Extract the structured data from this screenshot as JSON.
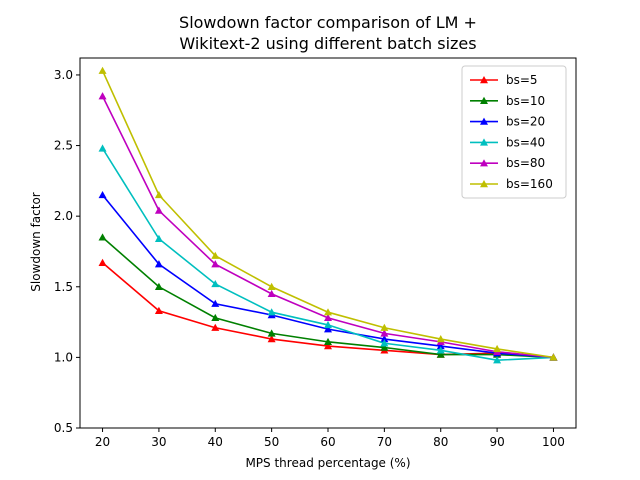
{
  "chart_data": {
    "type": "line",
    "title": [
      "Slowdown factor comparison of LM +",
      "Wikitext-2 using different batch sizes"
    ],
    "xlabel": "MPS thread percentage (%)",
    "ylabel": "Slowdown factor",
    "xlim": [
      16,
      104
    ],
    "ylim": [
      0.5,
      3.12
    ],
    "x": [
      20,
      30,
      40,
      50,
      60,
      70,
      80,
      90,
      100
    ],
    "xticks": [
      "20",
      "30",
      "40",
      "50",
      "60",
      "70",
      "80",
      "90",
      "100"
    ],
    "yticks": [
      "0.5",
      "1.0",
      "1.5",
      "2.0",
      "2.5",
      "3.0"
    ],
    "ytick_values": [
      0.5,
      1.0,
      1.5,
      2.0,
      2.5,
      3.0
    ],
    "grid": false,
    "legend_position": "top-right",
    "marker": "triangle-up",
    "series": [
      {
        "name": "bs=5",
        "color": "#ff0000",
        "values": [
          1.67,
          1.33,
          1.21,
          1.13,
          1.08,
          1.05,
          1.02,
          1.03,
          1.0
        ]
      },
      {
        "name": "bs=10",
        "color": "#008000",
        "values": [
          1.85,
          1.5,
          1.28,
          1.17,
          1.11,
          1.07,
          1.02,
          1.02,
          1.0
        ]
      },
      {
        "name": "bs=20",
        "color": "#0000ff",
        "values": [
          2.15,
          1.66,
          1.38,
          1.3,
          1.2,
          1.13,
          1.08,
          1.03,
          1.0
        ]
      },
      {
        "name": "bs=40",
        "color": "#00bfbf",
        "values": [
          2.48,
          1.84,
          1.52,
          1.32,
          1.23,
          1.1,
          1.05,
          0.98,
          1.0
        ]
      },
      {
        "name": "bs=80",
        "color": "#bf00bf",
        "values": [
          2.85,
          2.04,
          1.66,
          1.45,
          1.28,
          1.17,
          1.11,
          1.04,
          1.0
        ]
      },
      {
        "name": "bs=160",
        "color": "#bfbf00",
        "values": [
          3.03,
          2.15,
          1.72,
          1.5,
          1.32,
          1.21,
          1.13,
          1.06,
          1.0
        ]
      }
    ]
  }
}
